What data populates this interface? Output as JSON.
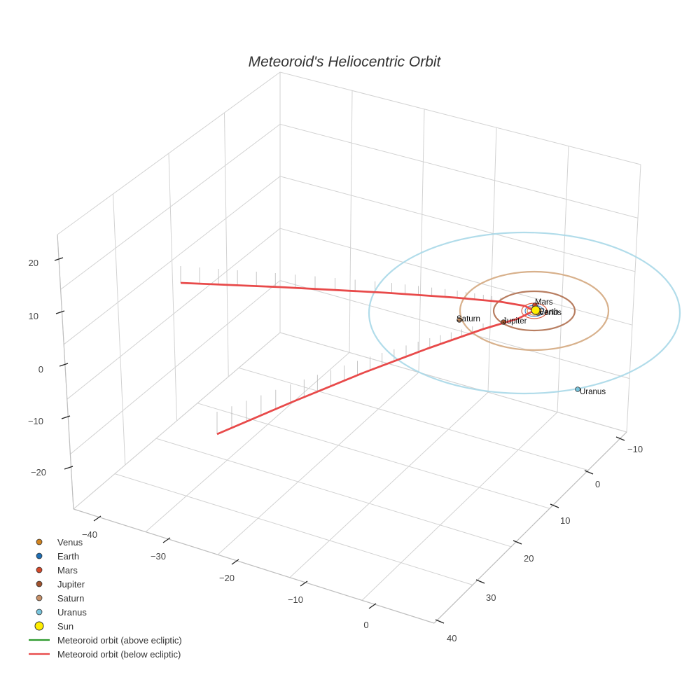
{
  "chart_data": {
    "type": "scatter3d",
    "title": "Meteoroid's Heliocentric Orbit",
    "axes": {
      "x": {
        "ticks": [
          "−40",
          "−30",
          "−20",
          "−10",
          "0"
        ]
      },
      "y": {
        "ticks": [
          "−10",
          "0",
          "10",
          "20",
          "30",
          "40"
        ]
      },
      "z": {
        "ticks": [
          "20",
          "10",
          "0",
          "−10",
          "−20"
        ]
      }
    },
    "bodies": [
      {
        "name": "Venus",
        "color": "#d0831f",
        "label": "Venus",
        "orbit_color": "#d0831f"
      },
      {
        "name": "Earth",
        "color": "#1f6fb4",
        "label": "Earth",
        "orbit_color": "#3a78c8"
      },
      {
        "name": "Mars",
        "color": "#d4482a",
        "label": "Mars",
        "orbit_color": "#d4482a"
      },
      {
        "name": "Jupiter",
        "color": "#a0522d",
        "label": "Jupiter",
        "orbit_color": "#b07050"
      },
      {
        "name": "Saturn",
        "color": "#c69068",
        "label": "Saturn",
        "orbit_color": "#d4a880"
      },
      {
        "name": "Uranus",
        "color": "#78c4dc",
        "label": "Uranus",
        "orbit_color": "#a8d8e8"
      },
      {
        "name": "Sun",
        "color": "#ffee00",
        "label": ""
      }
    ],
    "series": [
      {
        "name": "Meteoroid orbit (above ecliptic)",
        "color": "#2e9a2e"
      },
      {
        "name": "Meteoroid orbit (below ecliptic)",
        "color": "#e84a4a"
      }
    ],
    "legend": {
      "placement": "bottom-left",
      "items": [
        {
          "label": "Venus",
          "marker": "dot",
          "color": "#d0831f"
        },
        {
          "label": "Earth",
          "marker": "dot",
          "color": "#1f6fb4"
        },
        {
          "label": "Mars",
          "marker": "dot",
          "color": "#d4482a"
        },
        {
          "label": "Jupiter",
          "marker": "dot",
          "color": "#a0522d"
        },
        {
          "label": "Saturn",
          "marker": "dot",
          "color": "#c69068"
        },
        {
          "label": "Uranus",
          "marker": "dot",
          "color": "#78c4dc"
        },
        {
          "label": "Sun",
          "marker": "sun",
          "color": "#ffee00"
        },
        {
          "label": "Meteoroid orbit (above ecliptic)",
          "marker": "line",
          "color": "#2e9a2e"
        },
        {
          "label": "Meteoroid orbit (below ecliptic)",
          "marker": "line",
          "color": "#e84a4a"
        }
      ]
    },
    "grid": true
  }
}
